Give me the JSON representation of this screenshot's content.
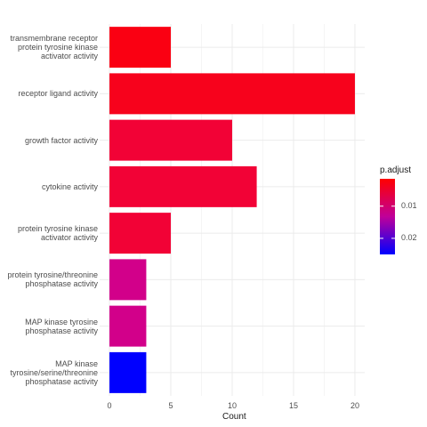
{
  "chart_data": {
    "type": "bar",
    "orientation": "horizontal",
    "categories": [
      "transmembrane receptor protein tyrosine kinase activator activity",
      "receptor ligand activity",
      "growth factor activity",
      "cytokine activity",
      "protein tyrosine kinase activator activity",
      "protein tyrosine/threonine phosphatase activity",
      "MAP kinase tyrosine phosphatase activity",
      "MAP kinase tyrosine/serine/threonine phosphatase activity"
    ],
    "category_lines": [
      [
        "transmembrane receptor",
        "protein tyrosine kinase",
        "activator activity"
      ],
      [
        "receptor ligand activity"
      ],
      [
        "growth factor activity"
      ],
      [
        "cytokine activity"
      ],
      [
        "protein tyrosine kinase",
        "activator activity"
      ],
      [
        "protein tyrosine/threonine",
        "phosphatase activity"
      ],
      [
        "MAP kinase tyrosine",
        "phosphatase activity"
      ],
      [
        "MAP kinase",
        "tyrosine/serine/threonine",
        "phosphatase activity"
      ]
    ],
    "values": [
      5,
      20,
      10,
      12,
      5,
      3,
      3,
      3
    ],
    "colors": [
      "#fa0012",
      "#f7021c",
      "#f20236",
      "#f20236",
      "#f20236",
      "#d2008a",
      "#d2008a",
      "#0000ff"
    ],
    "xlabel": "Count",
    "ylabel": "",
    "xlim": [
      -0.8,
      20.8
    ],
    "xticks": [
      0,
      5,
      10,
      15,
      20
    ],
    "grid": true,
    "legend": {
      "title": "p.adjust",
      "placement": "right",
      "gradient": [
        "#ff0000",
        "#c00099",
        "#0000ff"
      ],
      "ticks": [
        {
          "label": "0.01",
          "value": 0.01
        },
        {
          "label": "0.02",
          "value": 0.02
        }
      ],
      "range": [
        0.0015,
        0.025
      ]
    }
  }
}
